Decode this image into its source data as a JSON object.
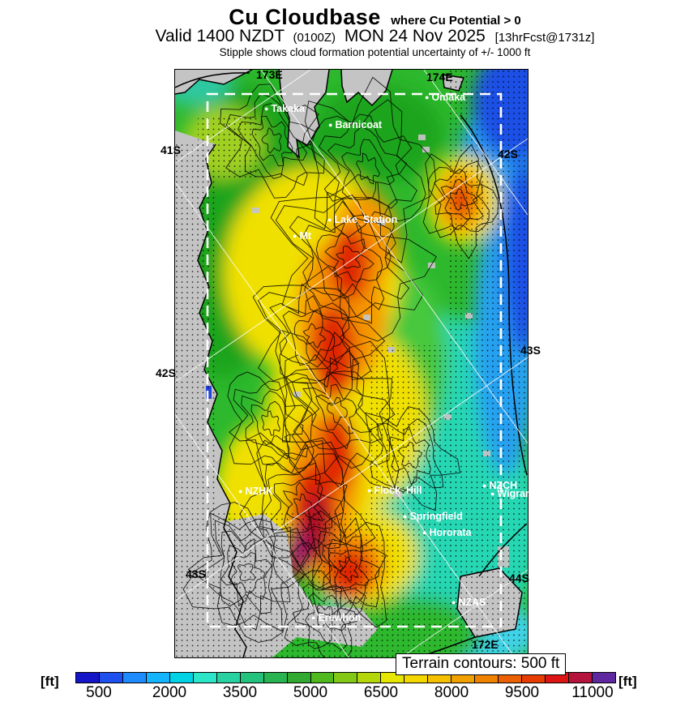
{
  "header": {
    "title": "Cu Cloudbase",
    "title_qualifier": "where Cu Potential > 0",
    "valid_prefix": "Valid 1400 NZDT",
    "valid_zulu": "(0100Z)",
    "valid_date": "MON 24 Nov 2025",
    "forecast_ref": "[13hrFcst@1731z]",
    "subtitle": "Stipple shows cloud formation potential uncertainty of +/- 1000 ft"
  },
  "map": {
    "terrain_note": "Terrain contours: 500 ft",
    "graticule_labels": [
      {
        "text": "41S"
      },
      {
        "text": "42S"
      },
      {
        "text": "43S"
      },
      {
        "text": "42S"
      },
      {
        "text": "43S"
      },
      {
        "text": "44S"
      },
      {
        "text": "173E"
      },
      {
        "text": "174E"
      },
      {
        "text": "172E"
      }
    ],
    "places": [
      {
        "name": "Takaka"
      },
      {
        "name": "Barnicoat"
      },
      {
        "name": "Omaka"
      },
      {
        "name": "Lake_Station"
      },
      {
        "name": "Mt"
      },
      {
        "name": "NZHK"
      },
      {
        "name": "Flock_Hill"
      },
      {
        "name": "NZCH"
      },
      {
        "name": "Wigram"
      },
      {
        "name": "Springfield"
      },
      {
        "name": "Hororata"
      },
      {
        "name": "NZAS"
      },
      {
        "name": "Erewhon"
      }
    ]
  },
  "colorbar": {
    "unit_left": "[ft]",
    "unit_right": "[ft]",
    "ticks": [
      "500",
      "2000",
      "3500",
      "5000",
      "6500",
      "8000",
      "9500",
      "11000"
    ],
    "tick_values_ft": [
      500,
      2000,
      3500,
      5000,
      6500,
      8000,
      9500,
      11000
    ],
    "range_ft": [
      0,
      11500
    ],
    "step_ft": 500,
    "segment_colors": [
      "#1414c8",
      "#1e50f0",
      "#1e8cff",
      "#14b4ff",
      "#00d2e6",
      "#2de6c8",
      "#28d2a0",
      "#23c37d",
      "#28b450",
      "#32aa32",
      "#50b91e",
      "#82c814",
      "#b4d70a",
      "#e6e600",
      "#f5d700",
      "#f5c000",
      "#f0a000",
      "#f08200",
      "#eb6000",
      "#e63c00",
      "#dc1414",
      "#b4143c",
      "#5f28a0"
    ]
  }
}
